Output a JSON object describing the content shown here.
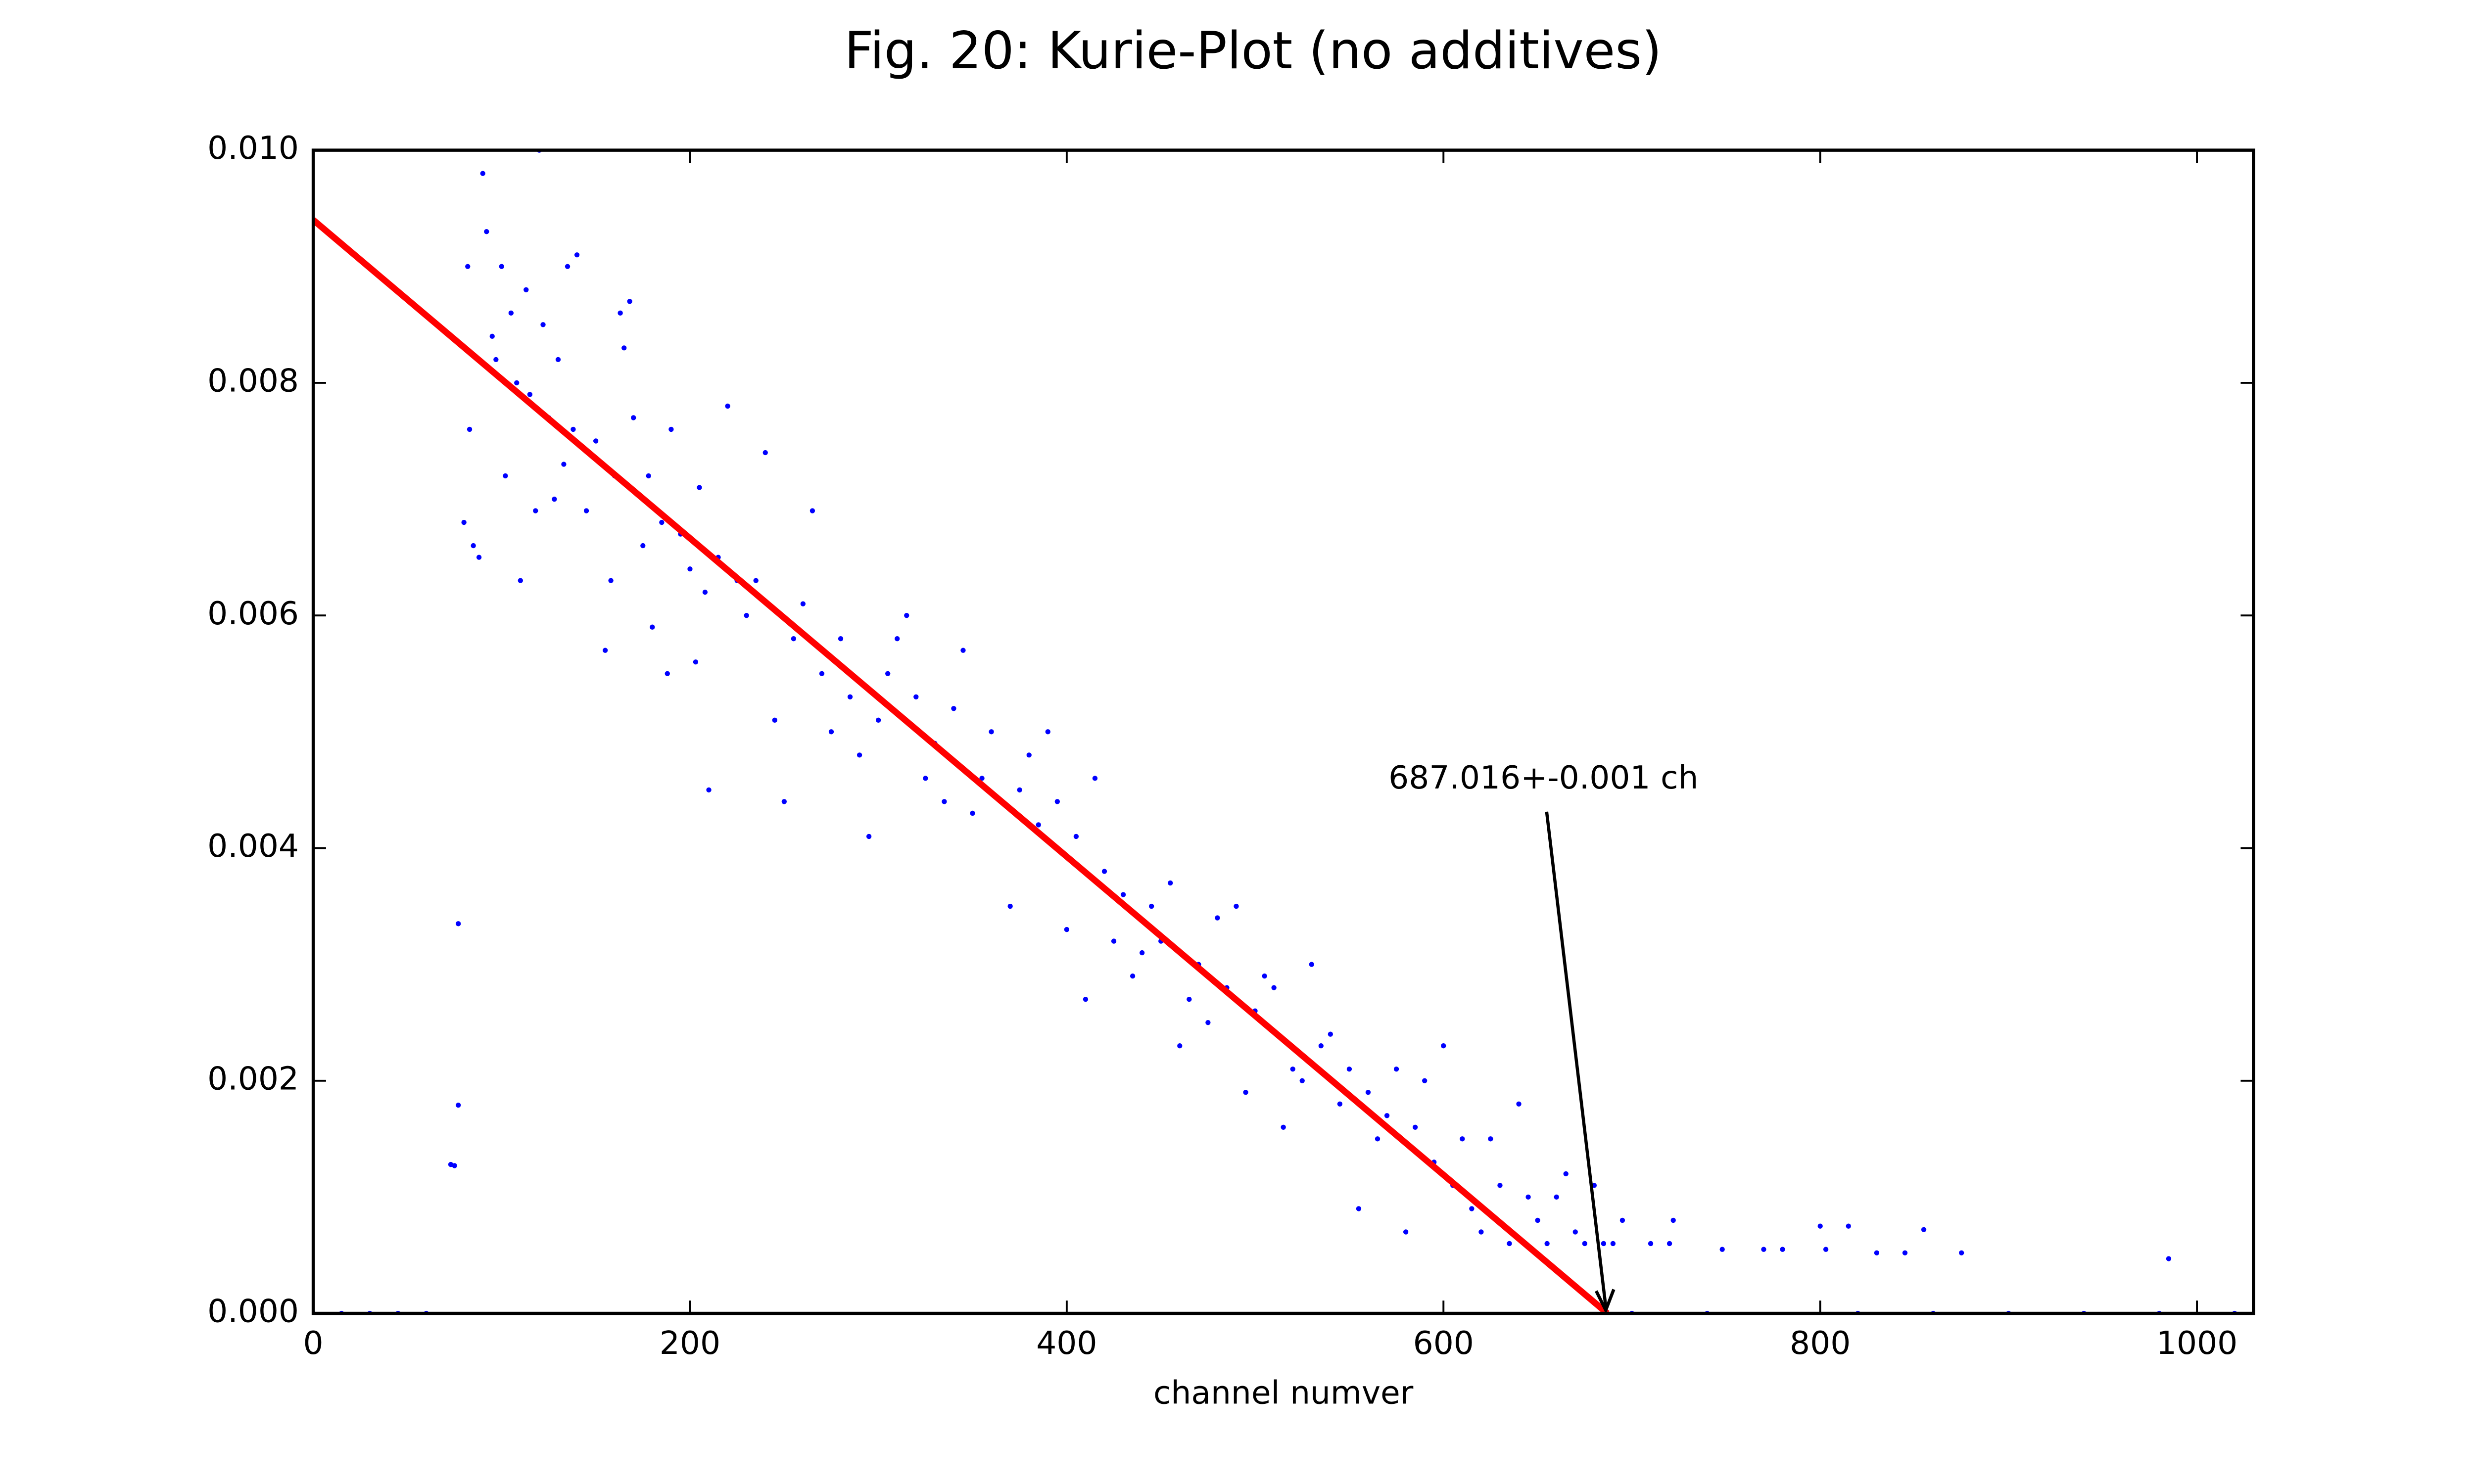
{
  "chart_data": {
    "type": "scatter",
    "title": "Fig. 20: Kurie-Plot (no additives)",
    "x_label": "channel numver",
    "xlim": [
      0,
      1030
    ],
    "ylim": [
      0,
      0.01
    ],
    "xticks": [
      0,
      200,
      400,
      600,
      800,
      1000
    ],
    "yticks": [
      {
        "value": 0,
        "label": "0.000"
      },
      {
        "value": 0.002,
        "label": "0.002"
      },
      {
        "value": 0.004,
        "label": "0.004"
      },
      {
        "value": 0.006,
        "label": "0.006"
      },
      {
        "value": 0.008,
        "label": "0.008"
      },
      {
        "value": 0.01,
        "label": "0.010"
      }
    ],
    "grid": false,
    "series": [
      {
        "kind": "points",
        "color": "#0000ff",
        "x": [
          0,
          15,
          30,
          45,
          60,
          73,
          75,
          77,
          77,
          80,
          82,
          83,
          85,
          88,
          90,
          92,
          95,
          97,
          100,
          102,
          105,
          108,
          110,
          113,
          115,
          118,
          120,
          122,
          125,
          128,
          130,
          133,
          135,
          138,
          140,
          145,
          150,
          155,
          158,
          160,
          163,
          165,
          168,
          170,
          175,
          178,
          180,
          185,
          188,
          190,
          195,
          200,
          203,
          205,
          208,
          210,
          215,
          220,
          225,
          230,
          235,
          240,
          245,
          250,
          255,
          260,
          265,
          270,
          275,
          280,
          285,
          290,
          295,
          300,
          305,
          310,
          315,
          320,
          325,
          330,
          335,
          340,
          345,
          350,
          355,
          360,
          365,
          370,
          375,
          380,
          385,
          390,
          395,
          400,
          405,
          410,
          415,
          420,
          425,
          430,
          435,
          440,
          445,
          450,
          455,
          460,
          465,
          470,
          475,
          480,
          485,
          490,
          495,
          500,
          505,
          510,
          515,
          520,
          525,
          530,
          535,
          540,
          545,
          550,
          555,
          560,
          565,
          570,
          575,
          580,
          585,
          590,
          595,
          600,
          605,
          610,
          615,
          620,
          625,
          630,
          635,
          640,
          645,
          650,
          655,
          660,
          665,
          670,
          675,
          680,
          685,
          690,
          695,
          700,
          710,
          720,
          722,
          740,
          748,
          770,
          780,
          800,
          803,
          815,
          820,
          830,
          845,
          855,
          860,
          875,
          900,
          940,
          980,
          985,
          1020
        ],
        "y": [
          0,
          0,
          0,
          0,
          0,
          0.00128,
          0.00127,
          0.00335,
          0.00179,
          0.0068,
          0.009,
          0.0076,
          0.0066,
          0.0065,
          0.0098,
          0.0093,
          0.0084,
          0.0082,
          0.009,
          0.0072,
          0.0086,
          0.008,
          0.0063,
          0.0088,
          0.0079,
          0.0069,
          0.01,
          0.0085,
          0.0077,
          0.007,
          0.0082,
          0.0073,
          0.009,
          0.0076,
          0.0091,
          0.0069,
          0.0075,
          0.0057,
          0.0063,
          0.0072,
          0.0086,
          0.0083,
          0.0087,
          0.0077,
          0.0066,
          0.0072,
          0.0059,
          0.0068,
          0.0055,
          0.0076,
          0.0067,
          0.0064,
          0.0056,
          0.0071,
          0.0062,
          0.0045,
          0.0065,
          0.0078,
          0.0063,
          0.006,
          0.0063,
          0.0074,
          0.0051,
          0.0044,
          0.0058,
          0.0061,
          0.0069,
          0.0055,
          0.005,
          0.0058,
          0.0053,
          0.0048,
          0.0041,
          0.0051,
          0.0055,
          0.0058,
          0.006,
          0.0053,
          0.0046,
          0.0049,
          0.0044,
          0.0052,
          0.0057,
          0.0043,
          0.0046,
          0.005,
          0.0044,
          0.0035,
          0.0045,
          0.0048,
          0.0042,
          0.005,
          0.0044,
          0.0033,
          0.0041,
          0.0027,
          0.0046,
          0.0038,
          0.0032,
          0.0036,
          0.0029,
          0.0031,
          0.0035,
          0.0032,
          0.0037,
          0.0023,
          0.0027,
          0.003,
          0.0025,
          0.0034,
          0.0028,
          0.0035,
          0.0019,
          0.0026,
          0.0029,
          0.0028,
          0.0016,
          0.0021,
          0.002,
          0.003,
          0.0023,
          0.0024,
          0.0018,
          0.0021,
          0.0009,
          0.0019,
          0.0015,
          0.0017,
          0.0021,
          0.0007,
          0.0016,
          0.002,
          0.0013,
          0.0023,
          0.0011,
          0.0015,
          0.0009,
          0.0007,
          0.0015,
          0.0011,
          0.0006,
          0.0018,
          0.001,
          0.0008,
          0.0006,
          0.001,
          0.0012,
          0.0007,
          0.0006,
          0.0011,
          0.0006,
          0.0006,
          0.0008,
          0,
          0.0006,
          0.0006,
          0.0008,
          0,
          0.00055,
          0.00055,
          0.00055,
          0.00075,
          0.00055,
          0.00075,
          0,
          0.00052,
          0.00052,
          0.00072,
          0,
          0.00052,
          0,
          0,
          0,
          0.00047,
          0
        ]
      },
      {
        "kind": "line",
        "color": "#ff0000",
        "x": [
          0,
          687.016
        ],
        "y": [
          0.0094,
          0
        ]
      }
    ],
    "annotation": "687.016+-0.001 ch"
  }
}
